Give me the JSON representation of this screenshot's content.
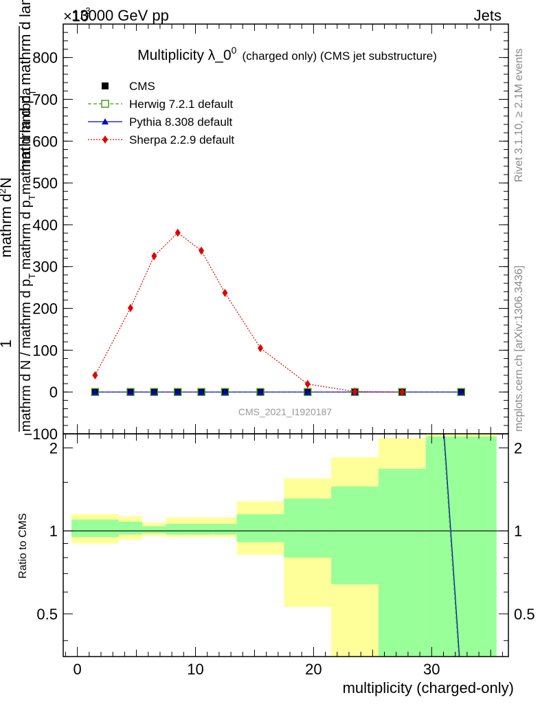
{
  "header": {
    "energy_label": "13000 GeV pp",
    "process_label": "Jets",
    "exponent_label": "×10",
    "exponent_power": "-3"
  },
  "side_labels": {
    "rivet": "Rivet 3.1.10, ≥ 2.1M events",
    "mcplots": "mcplots.cern.ch [arXiv:1306.3436]"
  },
  "watermark": "CMS_2021_I1920187",
  "chart_data": [
    {
      "type": "line",
      "title": {
        "main": "Multiplicity λ_0",
        "sup": "0",
        "suffix": "(charged only) (CMS jet substructure)"
      },
      "ylabel": {
        "numerator": "1",
        "denominator": "mathrm d N / mathrm d p_T mathrm d p_T mathrm d lambda",
        "main": "mathrm d^2 N",
        "line2": "mathrm d p_T mathrm d lambda"
      },
      "ylabel_lines": [
        "mathrm d^2N",
        "mathrm d p",
        "T",
        "mathrm d lambda",
        "1",
        "mathrm d N / mathrm d p",
        "T",
        "mathrm d p",
        "T",
        "mathrm d lambda"
      ],
      "xlim": [
        -1.2,
        36.5
      ],
      "ylim": [
        -100,
        880
      ],
      "yticks": [
        -100,
        0,
        100,
        200,
        300,
        400,
        500,
        600,
        700,
        800
      ],
      "yticks_labels": [
        "−100",
        "0",
        "100",
        "200",
        "300",
        "400",
        "500",
        "600",
        "700",
        "800"
      ],
      "legend_position": "top-left",
      "series": [
        {
          "name": "CMS",
          "color": "#000000",
          "marker": "square",
          "x": [
            1.5,
            4.5,
            6.5,
            8.5,
            10.5,
            12.5,
            15.5,
            19.5,
            23.5,
            27.5,
            32.5
          ],
          "y": [
            0,
            0,
            0,
            0,
            0,
            0,
            0,
            0,
            0,
            0,
            0
          ]
        },
        {
          "name": "Herwig 7.2.1 default",
          "color": "#4a9a1a",
          "marker": "open-square",
          "line": "dashed",
          "x": [
            1.5,
            4.5,
            6.5,
            8.5,
            10.5,
            12.5,
            15.5,
            19.5,
            23.5,
            27.5,
            32.5
          ],
          "y": [
            0,
            0,
            0,
            0,
            0,
            0,
            0,
            0,
            0,
            0,
            0
          ]
        },
        {
          "name": "Pythia 8.308 default",
          "color": "#0000cc",
          "marker": "triangle",
          "line": "solid",
          "x": [
            1.5,
            4.5,
            6.5,
            8.5,
            10.5,
            12.5,
            15.5,
            19.5,
            23.5,
            27.5,
            32.5
          ],
          "y": [
            0,
            0,
            0,
            0,
            0,
            0,
            0,
            0,
            0,
            0,
            0
          ]
        },
        {
          "name": "Sherpa 2.2.9 default",
          "color": "#e00000",
          "marker": "diamond",
          "line": "dotted",
          "x": [
            1.5,
            4.5,
            6.5,
            8.5,
            10.5,
            12.5,
            15.5,
            19.5,
            23.5,
            27.5
          ],
          "y": [
            40,
            201,
            325,
            381,
            338,
            237,
            105,
            19,
            1,
            0
          ]
        }
      ]
    },
    {
      "type": "area",
      "ylabel": "Ratio to CMS",
      "xlabel": "multiplicity (charged-only)",
      "xlim": [
        -1.2,
        36.5
      ],
      "ylim": [
        0.35,
        2.25
      ],
      "xticks": [
        0,
        10,
        20,
        30
      ],
      "yticks": [
        0.5,
        1,
        2
      ],
      "yticks_labels": [
        "0.5",
        "1",
        "2"
      ],
      "bands": {
        "edges": [
          -0.5,
          3.5,
          5.5,
          7.5,
          9.5,
          11.5,
          13.5,
          17.5,
          21.5,
          25.5,
          29.5,
          35.5
        ],
        "yellow_low": [
          0.9,
          0.93,
          0.96,
          0.95,
          0.95,
          0.95,
          0.82,
          0.53,
          0.35,
          0.35,
          0.35
        ],
        "yellow_high": [
          1.15,
          1.13,
          1.07,
          1.12,
          1.12,
          1.12,
          1.28,
          1.55,
          1.85,
          2.17,
          2.25
        ],
        "green_low": [
          0.95,
          0.97,
          0.98,
          0.97,
          0.97,
          0.97,
          0.91,
          0.8,
          0.64,
          0.35,
          0.35
        ],
        "green_high": [
          1.1,
          1.08,
          1.04,
          1.06,
          1.06,
          1.06,
          1.15,
          1.31,
          1.45,
          1.68,
          2.2
        ]
      },
      "series": [
        {
          "name": "Pythia 8.308 default",
          "color": "#0000cc",
          "x": [
            31.05,
            32.35
          ],
          "y": [
            2.25,
            0.35
          ]
        },
        {
          "name": "Herwig 7.2.1 default",
          "color": "#4a9a1a",
          "x": [
            31.0,
            32.3
          ],
          "y": [
            2.25,
            0.35
          ]
        }
      ],
      "reference_line": 1
    }
  ]
}
